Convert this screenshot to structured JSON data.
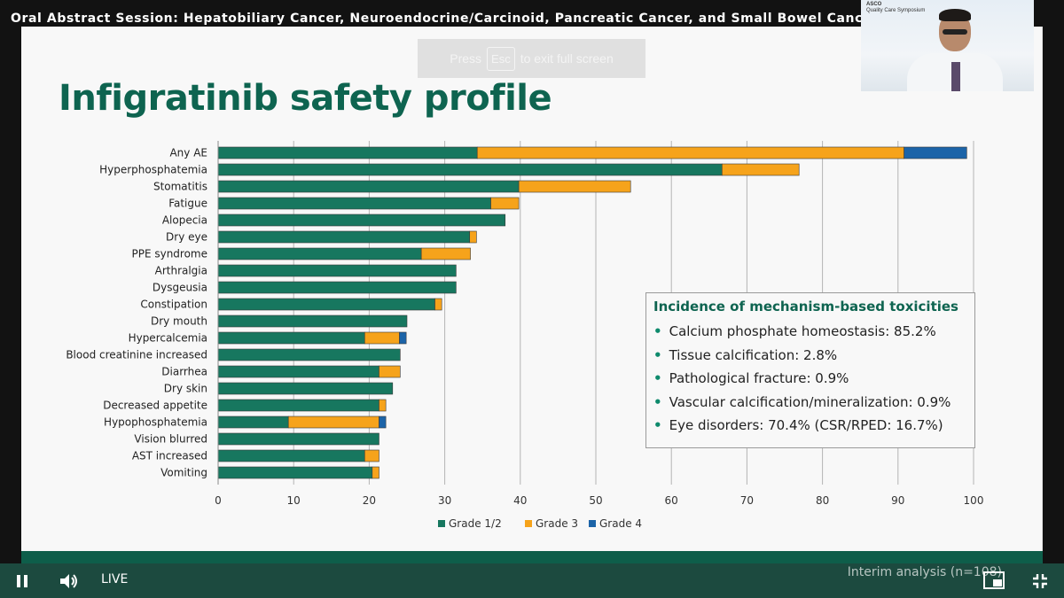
{
  "video": {
    "title": "Oral Abstract Session: Hepatobiliary Cancer, Neuroendocrine/Carcinoid, Pancreatic Cancer, and Small Bowel Cancer",
    "toast_press": "Press",
    "toast_key": "Esc",
    "toast_rest": "to exit full screen",
    "live_label": "LIVE",
    "webcam_logo": "ASCO",
    "webcam_logo_sub": "Quality Care Symposium"
  },
  "slide": {
    "title": "Infigratinib safety profile",
    "footer_note": "Interim analysis (n=108)",
    "box_title": "Incidence of mechanism-based toxicities",
    "box_items": [
      "Calcium phosphate homeostasis: 85.2%",
      "Tissue calcification: 2.8%",
      "Pathological fracture: 0.9%",
      "Vascular calcification/mineralization: 0.9%",
      "Eye disorders: 70.4% (CSR/RPED: 16.7%)"
    ]
  },
  "colors": {
    "grade12": "#17775f",
    "grade3": "#f6a31b",
    "grade4": "#1c64a8",
    "title_green": "#0e6450"
  },
  "chart_data": {
    "type": "bar",
    "orientation": "horizontal",
    "stacked": true,
    "categories": [
      "Any AE",
      "Hyperphosphatemia",
      "Stomatitis",
      "Fatigue",
      "Alopecia",
      "Dry eye",
      "PPE syndrome",
      "Arthralgia",
      "Dysgeusia",
      "Constipation",
      "Dry mouth",
      "Hypercalcemia",
      "Blood creatinine increased",
      "Diarrhea",
      "Dry skin",
      "Decreased appetite",
      "Hypophosphatemia",
      "Vision blurred",
      "AST increased",
      "Vomiting"
    ],
    "series": [
      {
        "name": "Grade 1/2",
        "values": [
          34.3,
          66.7,
          39.8,
          36.1,
          38.0,
          33.3,
          26.9,
          31.5,
          31.5,
          28.7,
          25.0,
          19.4,
          24.1,
          21.3,
          23.1,
          21.3,
          9.3,
          21.3,
          19.4,
          20.4
        ]
      },
      {
        "name": "Grade 3",
        "values": [
          56.5,
          10.2,
          14.8,
          3.7,
          0,
          0.9,
          6.5,
          0,
          0,
          0.9,
          0,
          4.6,
          0,
          2.8,
          0,
          0.9,
          12.0,
          0,
          1.9,
          0.9
        ]
      },
      {
        "name": "Grade 4",
        "values": [
          8.3,
          0,
          0,
          0,
          0,
          0,
          0,
          0,
          0,
          0,
          0,
          0.9,
          0,
          0,
          0,
          0,
          0.9,
          0,
          0,
          0
        ]
      }
    ],
    "xlim": [
      0,
      100
    ],
    "xticks": [
      0,
      10,
      20,
      30,
      40,
      50,
      60,
      70,
      80,
      90,
      100
    ],
    "grid": "vertical",
    "legend_position": "bottom"
  }
}
